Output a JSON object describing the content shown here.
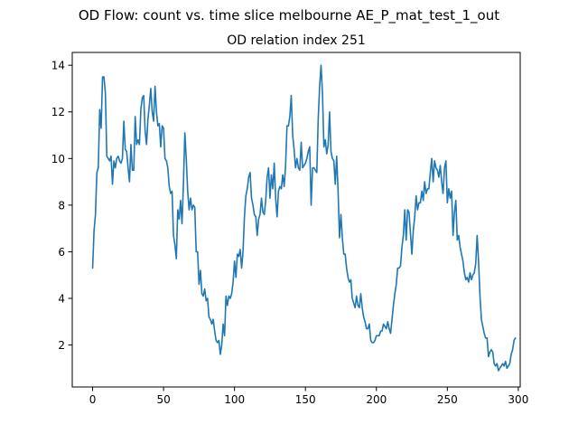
{
  "chart_data": {
    "type": "line",
    "suptitle": "OD Flow: count vs. time slice melbourne AE_P_mat_test_1_out",
    "title": "OD relation index 251",
    "xlabel": "",
    "ylabel": "",
    "xlim": [
      -14.35,
      301.35
    ],
    "ylim": [
      0.2,
      14.55
    ],
    "xticks": [
      0,
      50,
      100,
      150,
      200,
      250,
      300
    ],
    "yticks": [
      2,
      4,
      6,
      8,
      10,
      12,
      14
    ],
    "xtick_labels": [
      "0",
      "50",
      "100",
      "150",
      "200",
      "250",
      "300"
    ],
    "ytick_labels": [
      "2",
      "4",
      "6",
      "8",
      "10",
      "12",
      "14"
    ],
    "grid": false,
    "legend": "none",
    "colors": {
      "series": "#1f77b4",
      "axes": "#000000",
      "background": "#ffffff"
    },
    "series": [
      {
        "x_start": 0,
        "x_step": 1,
        "values": [
          5.3,
          6.9,
          7.6,
          9.4,
          9.6,
          12.1,
          11.3,
          13.5,
          13.5,
          12.8,
          10.1,
          10.0,
          9.9,
          10.1,
          8.9,
          9.9,
          9.6,
          10.0,
          10.1,
          9.9,
          9.8,
          10.0,
          11.6,
          10.4,
          10.3,
          9.6,
          9.0,
          10.6,
          9.5,
          9.5,
          11.8,
          10.6,
          10.8,
          10.6,
          12.1,
          12.6,
          12.7,
          11.2,
          10.6,
          11.7,
          12.3,
          13.0,
          12.0,
          11.6,
          13.1,
          12.0,
          11.4,
          11.5,
          10.5,
          11.4,
          11.3,
          10.0,
          9.9,
          9.6,
          8.8,
          8.5,
          8.6,
          6.7,
          6.3,
          5.7,
          7.8,
          7.4,
          8.2,
          7.2,
          8.9,
          11.1,
          10.0,
          8.6,
          7.8,
          8.3,
          7.8,
          8.0,
          7.9,
          6.0,
          6.0,
          4.6,
          5.2,
          4.2,
          4.1,
          4.4,
          3.9,
          4.0,
          3.2,
          3.1,
          2.9,
          3.1,
          2.6,
          2.2,
          2.1,
          2.2,
          1.6,
          2.0,
          2.9,
          2.4,
          4.1,
          3.7,
          4.1,
          4.0,
          4.2,
          4.7,
          5.6,
          4.9,
          5.9,
          5.8,
          6.1,
          5.3,
          6.0,
          7.5,
          8.4,
          8.7,
          9.2,
          9.4,
          8.3,
          8.0,
          7.6,
          7.5,
          6.7,
          7.4,
          7.6,
          8.3,
          7.7,
          7.6,
          8.2,
          9.2,
          9.6,
          8.3,
          9.3,
          8.7,
          9.8,
          8.3,
          7.5,
          8.6,
          8.8,
          8.7,
          9.3,
          8.8,
          9.7,
          11.4,
          11.4,
          11.8,
          12.7,
          11.0,
          10.4,
          9.6,
          10.0,
          9.6,
          9.5,
          10.7,
          9.6,
          9.7,
          9.8,
          10.0,
          10.3,
          10.5,
          8.0,
          9.6,
          9.6,
          9.5,
          9.4,
          11.7,
          13.1,
          14.0,
          12.8,
          10.5,
          10.8,
          10.2,
          10.6,
          12.0,
          10.3,
          10.0,
          9.9,
          8.9,
          10.1,
          8.6,
          6.6,
          7.6,
          6.6,
          5.9,
          5.9,
          5.3,
          4.9,
          4.7,
          4.8,
          4.0,
          3.8,
          3.6,
          4.1,
          3.7,
          3.6,
          4.2,
          3.6,
          3.2,
          3.0,
          2.7,
          2.7,
          2.9,
          2.2,
          2.1,
          2.1,
          2.2,
          2.4,
          2.4,
          2.4,
          2.6,
          2.6,
          2.9,
          2.8,
          2.7,
          3.0,
          2.7,
          2.5,
          3.1,
          3.7,
          4.2,
          4.6,
          5.3,
          5.3,
          5.4,
          6.2,
          6.7,
          7.8,
          6.5,
          7.8,
          7.7,
          6.8,
          5.9,
          6.9,
          7.5,
          8.4,
          7.8,
          8.1,
          8.1,
          8.6,
          8.2,
          9.0,
          8.5,
          8.7,
          8.7,
          9.4,
          10.0,
          9.0,
          9.9,
          9.6,
          9.5,
          9.2,
          9.7,
          9.0,
          8.5,
          9.6,
          9.9,
          8.1,
          8.7,
          8.3,
          8.6,
          6.7,
          7.7,
          8.2,
          6.5,
          6.7,
          6.2,
          5.9,
          5.6,
          5.1,
          4.8,
          4.9,
          4.7,
          5.1,
          4.8,
          5.0,
          5.1,
          5.5,
          6.7,
          5.6,
          4.1,
          3.1,
          2.8,
          2.5,
          2.3,
          2.3,
          1.5,
          1.7,
          1.8,
          1.7,
          1.2,
          1.1,
          1.2,
          0.9,
          1.0,
          1.1,
          1.2,
          1.1,
          1.3,
          1.0,
          1.1,
          1.2,
          1.6,
          1.8,
          2.2,
          2.3
        ]
      }
    ]
  }
}
